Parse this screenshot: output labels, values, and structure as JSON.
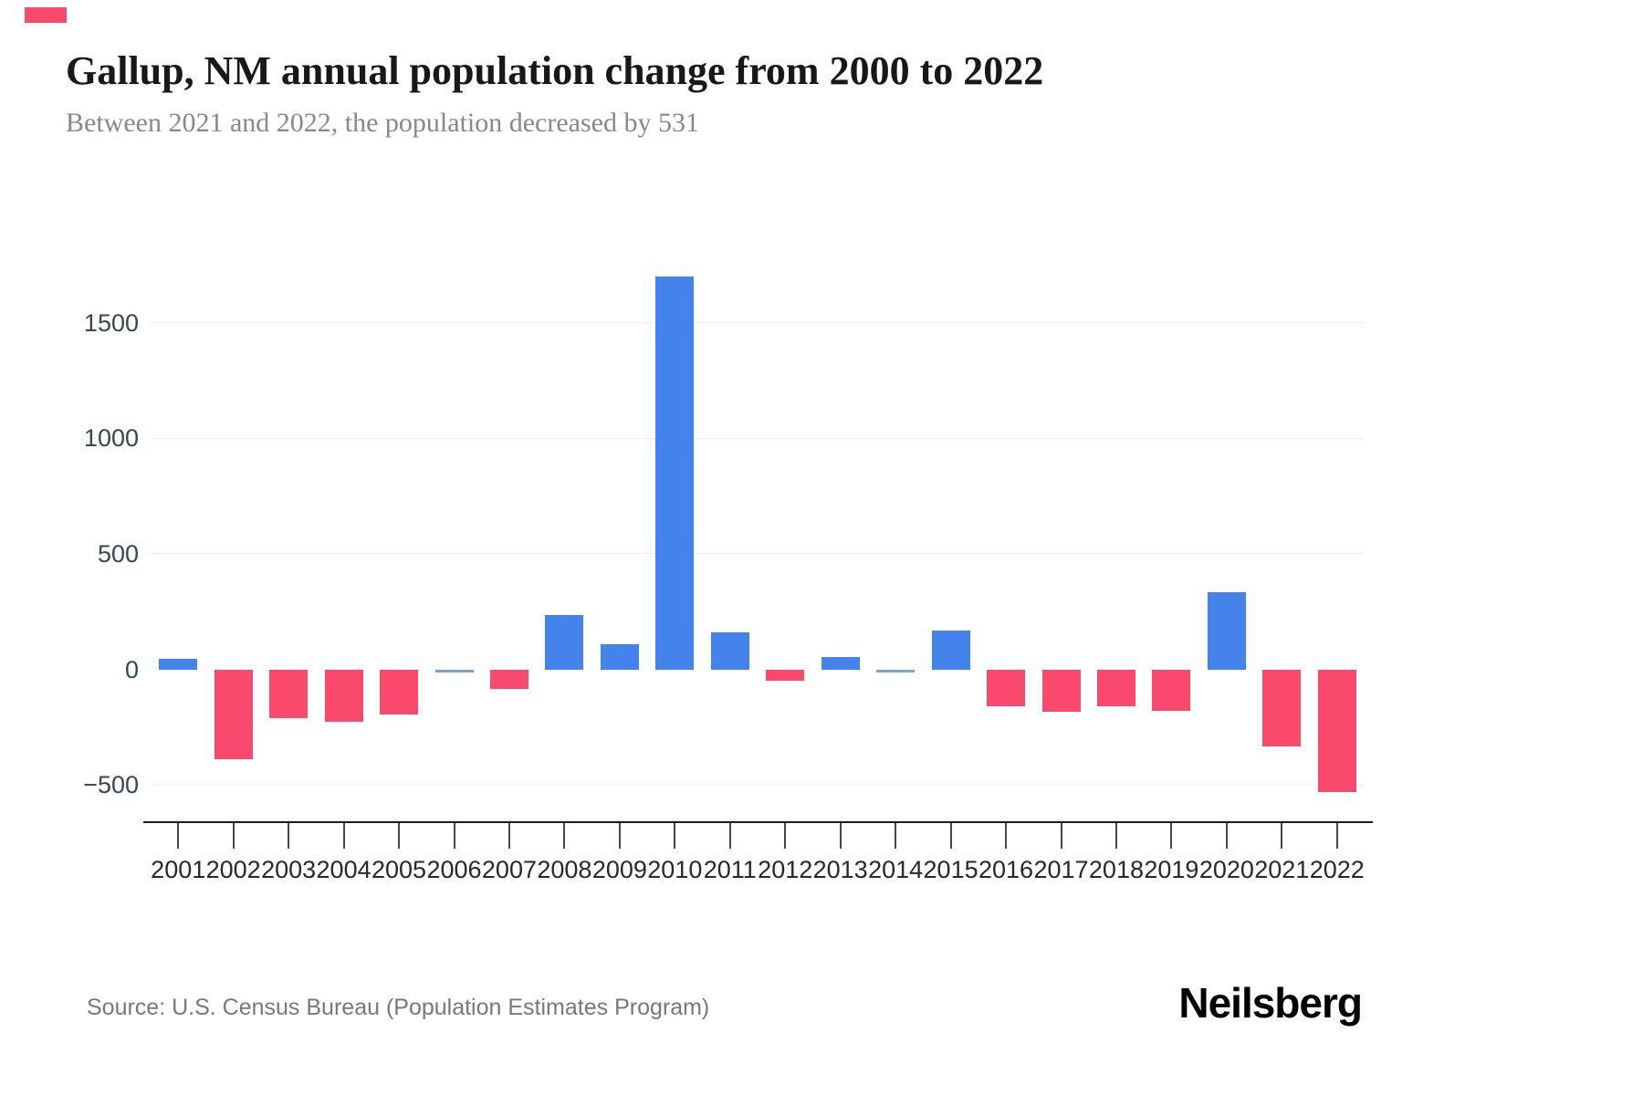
{
  "header": {
    "title": "Gallup, NM annual population change from 2000 to 2022",
    "subtitle": "Between 2021 and 2022, the population decreased by 531"
  },
  "footer": {
    "source": "Source: U.S. Census Bureau (Population Estimates Program)",
    "brand": "Neilsberg"
  },
  "colors": {
    "positive": "#4483ec",
    "negative": "#f9496d",
    "near_zero": "#7ba1d8",
    "grid": "#ededed",
    "axis": "#1b1d1f",
    "brand_accent": "#f9496d"
  },
  "chart_data": {
    "type": "bar",
    "title": "Gallup, NM annual population change from 2000 to 2022",
    "xlabel": "",
    "ylabel": "",
    "categories": [
      "2001",
      "2002",
      "2003",
      "2004",
      "2005",
      "2006",
      "2007",
      "2008",
      "2009",
      "2010",
      "2011",
      "2012",
      "2013",
      "2014",
      "2015",
      "2016",
      "2017",
      "2018",
      "2019",
      "2020",
      "2021",
      "2022"
    ],
    "values": [
      45,
      -390,
      -210,
      -225,
      -195,
      -4,
      -85,
      235,
      110,
      1700,
      160,
      -50,
      55,
      -2,
      170,
      -160,
      -185,
      -160,
      -180,
      335,
      -335,
      -531
    ],
    "y_ticks": [
      -500,
      0,
      500,
      1000,
      1500
    ],
    "y_tick_labels": [
      "−500",
      "0",
      "500",
      "1000",
      "1500"
    ],
    "gridlines_at": [
      -500,
      500,
      1000,
      1500
    ],
    "ylim": [
      -657,
      1980
    ],
    "grid": true,
    "legend": "none"
  }
}
